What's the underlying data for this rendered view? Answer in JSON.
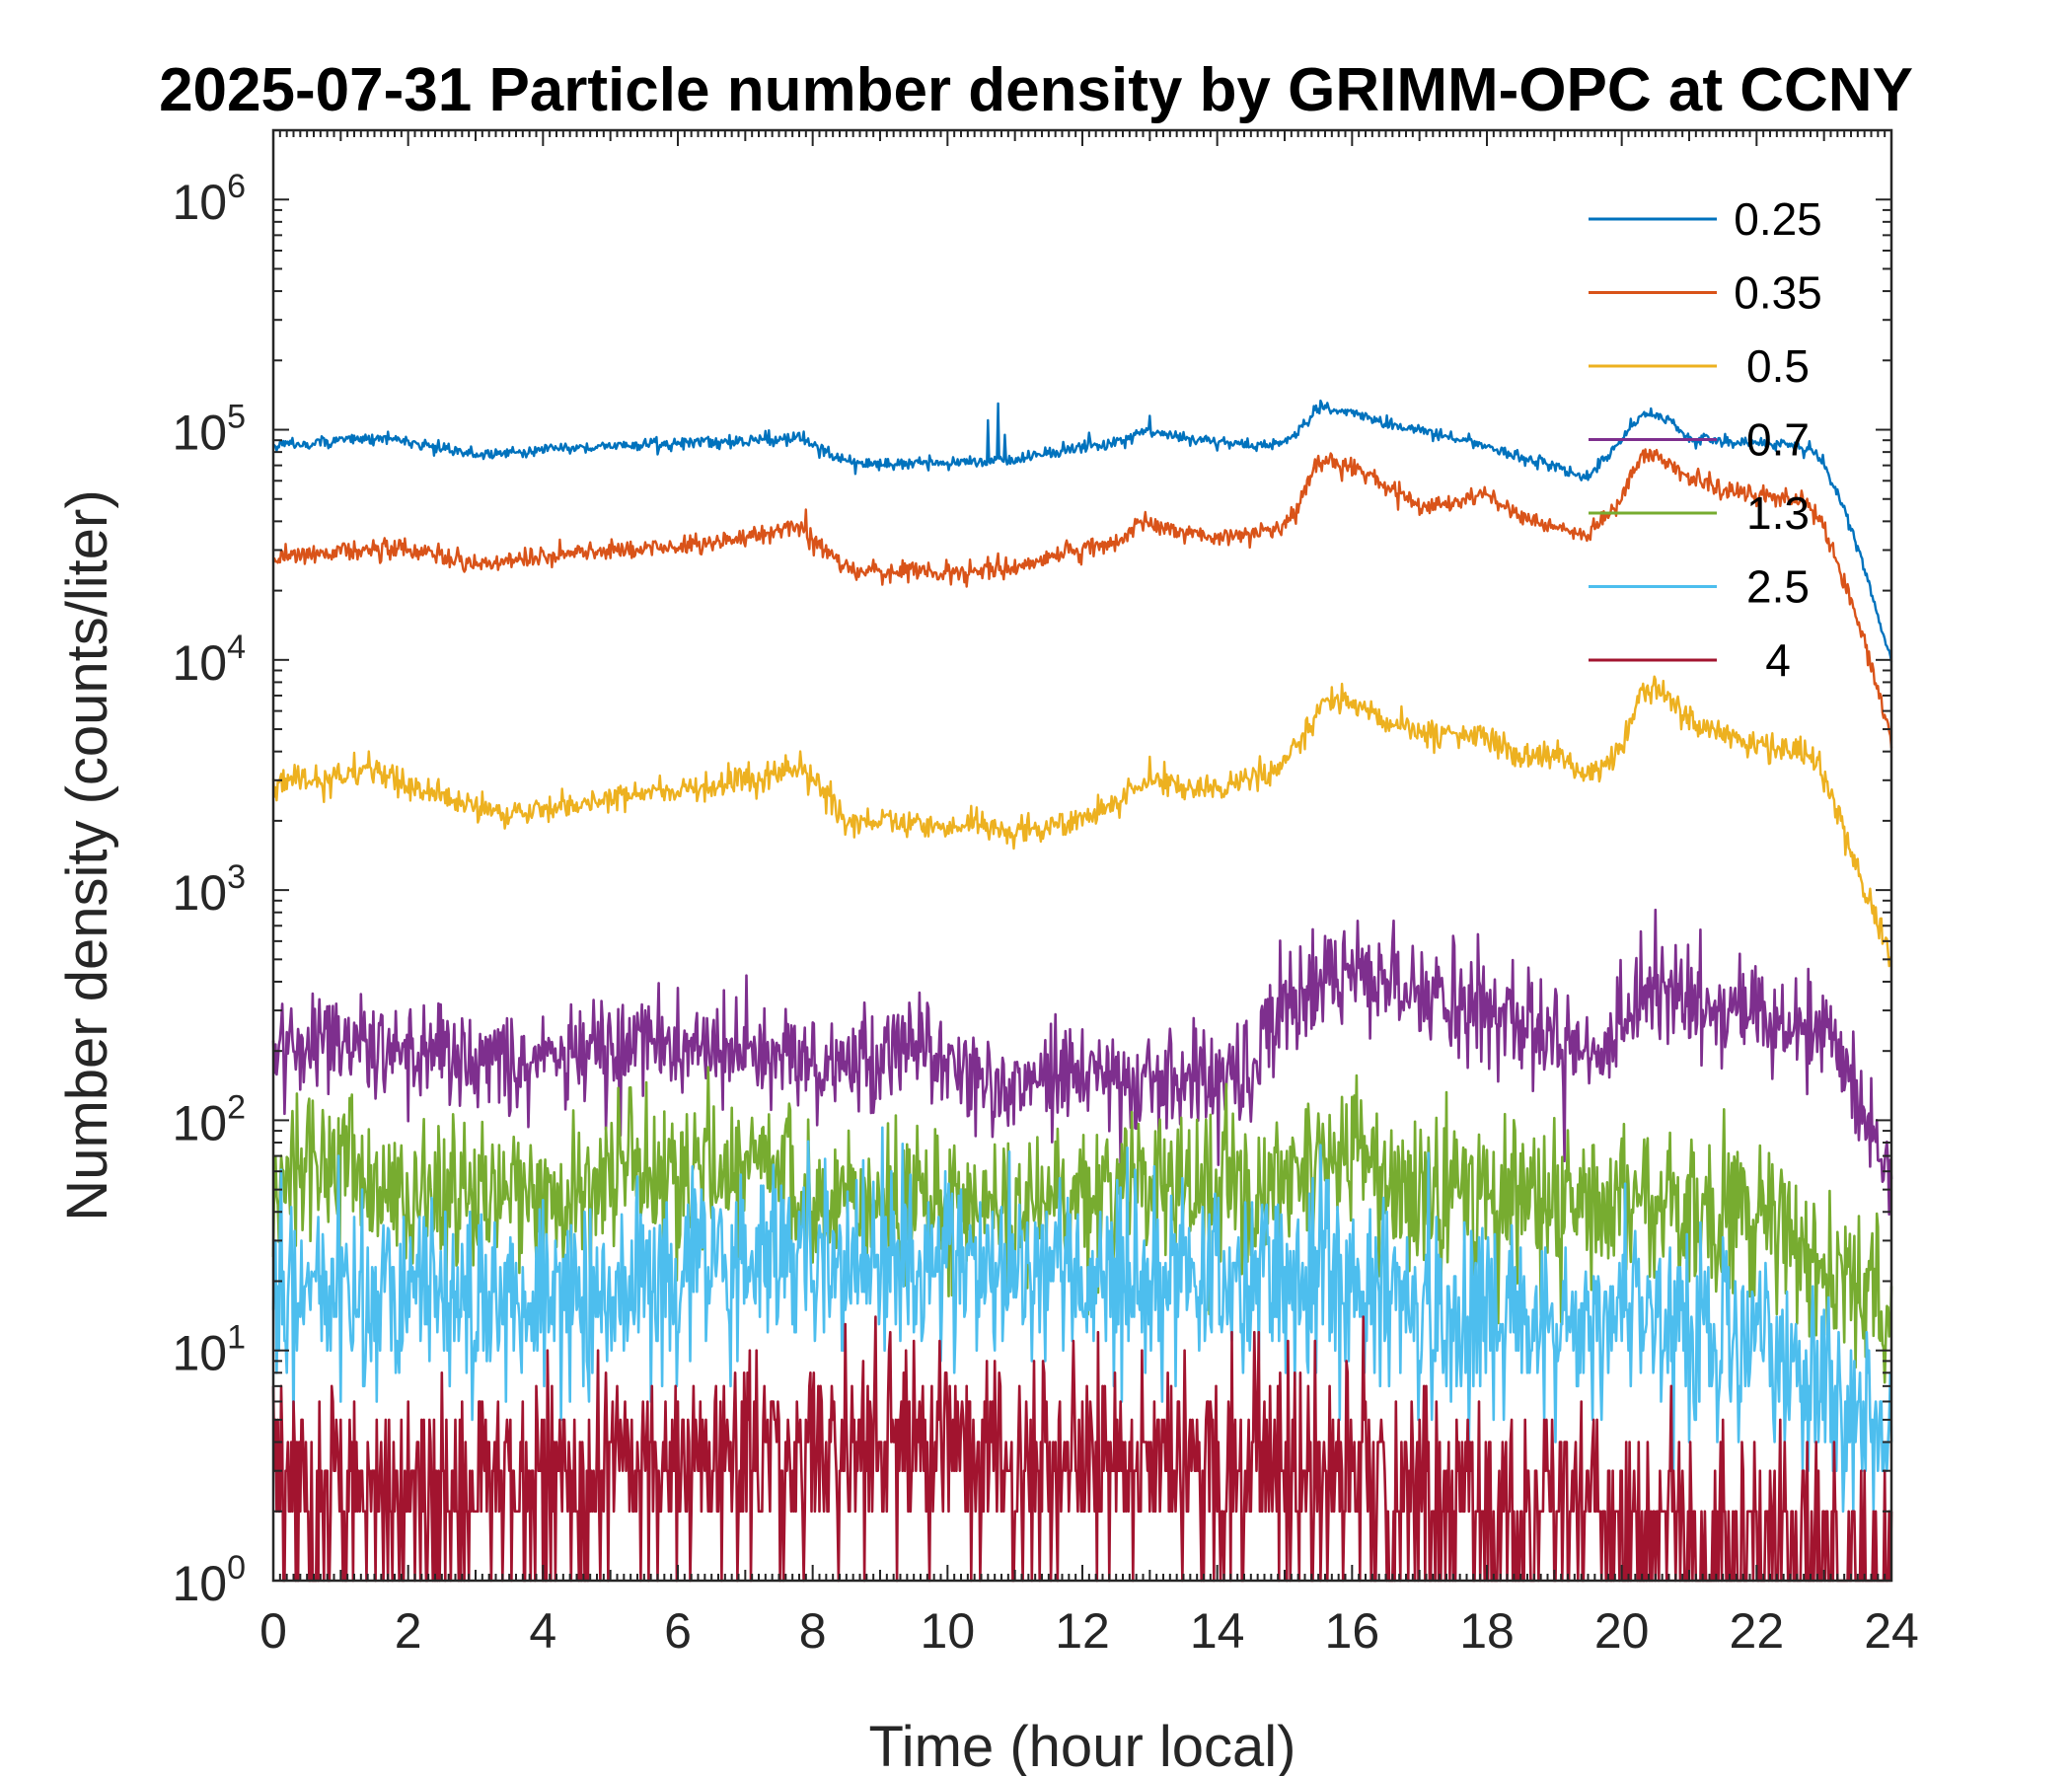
{
  "chart_data": {
    "type": "line",
    "title": "2025-07-31 Particle number density by GRIMM-OPC at CCNY",
    "xlabel": "Time (hour local)",
    "ylabel": "Number density (counts/liter)",
    "xlim": [
      0,
      24
    ],
    "ylim": [
      1,
      2000000
    ],
    "yscale": "log",
    "grid": false,
    "legend_position": "top-right",
    "x_ticks": [
      "0",
      "2",
      "4",
      "6",
      "8",
      "10",
      "12",
      "14",
      "16",
      "18",
      "20",
      "22",
      "24"
    ],
    "y_ticks": [
      {
        "base": "10",
        "exp": "0"
      },
      {
        "base": "10",
        "exp": "1"
      },
      {
        "base": "10",
        "exp": "2"
      },
      {
        "base": "10",
        "exp": "3"
      },
      {
        "base": "10",
        "exp": "4"
      },
      {
        "base": "10",
        "exp": "5"
      },
      {
        "base": "10",
        "exp": "6"
      }
    ],
    "series": [
      {
        "name": "0.25",
        "color": "#0072BD",
        "noise": 0.03,
        "x": [
          0,
          1,
          1.7,
          2,
          3,
          4,
          5,
          6,
          7,
          7.8,
          8.2,
          8.6,
          9,
          10,
          11,
          12,
          12.5,
          12.9,
          13.5,
          14,
          14.8,
          15.2,
          15.5,
          16,
          16.5,
          17,
          18,
          18.5,
          19,
          19.5,
          20,
          20.3,
          20.7,
          21,
          22,
          22.5,
          22.8,
          23,
          23.3,
          23.6,
          24
        ],
        "y": [
          85000,
          90000,
          92000,
          88000,
          78000,
          82000,
          85000,
          87000,
          90000,
          92000,
          80000,
          72000,
          70000,
          72000,
          74000,
          85000,
          88000,
          100000,
          92000,
          88000,
          85000,
          95000,
          125000,
          120000,
          105000,
          100000,
          85000,
          75000,
          70000,
          62000,
          90000,
          120000,
          110000,
          90000,
          88000,
          86000,
          83000,
          70000,
          45000,
          25000,
          10000
        ],
        "spikes": [
          [
            10.6,
            110000
          ],
          [
            10.75,
            130000
          ],
          [
            10.85,
            95000
          ],
          [
            1.7,
            98000
          ],
          [
            12.1,
            97000
          ],
          [
            13,
            115000
          ]
        ]
      },
      {
        "name": "0.35",
        "color": "#D95319",
        "noise": 0.05,
        "x": [
          0,
          1,
          2,
          3,
          4,
          5,
          6,
          7,
          7.8,
          8.2,
          8.5,
          9,
          10,
          11,
          11.5,
          12,
          12.5,
          12.9,
          13.5,
          14,
          14.8,
          15.2,
          15.5,
          16,
          16.5,
          17,
          18,
          18.5,
          19,
          19.5,
          20,
          20.3,
          20.7,
          21,
          21.5,
          22,
          22.5,
          22.8,
          23,
          23.3,
          23.6,
          24
        ],
        "y": [
          28000,
          30000,
          30000,
          26000,
          28000,
          30000,
          31000,
          34000,
          38000,
          30000,
          25000,
          24000,
          24000,
          25000,
          28000,
          30000,
          32000,
          40000,
          36000,
          34000,
          36000,
          45000,
          75000,
          70000,
          58000,
          45000,
          52000,
          42000,
          38000,
          35000,
          50000,
          80000,
          72000,
          60000,
          55000,
          52000,
          50000,
          47000,
          38000,
          22000,
          12000,
          4500
        ],
        "spikes": [
          [
            7.9,
            45000
          ],
          [
            10.6,
            28000
          ],
          [
            10.75,
            29000
          ]
        ]
      },
      {
        "name": "0.5",
        "color": "#EDB120",
        "noise": 0.07,
        "x": [
          0,
          1,
          1.5,
          2,
          3,
          3.5,
          4,
          5,
          6,
          7,
          7.8,
          8.2,
          8.5,
          9,
          10,
          11,
          11.5,
          12,
          12.5,
          13,
          13.5,
          14,
          14.8,
          15.2,
          15.6,
          16,
          16.5,
          17,
          18,
          18.5,
          19,
          19.5,
          20,
          20.3,
          20.7,
          21,
          22,
          22.5,
          22.8,
          23,
          23.3,
          23.6,
          24
        ],
        "y": [
          3000,
          3100,
          3300,
          2800,
          2300,
          2100,
          2300,
          2500,
          2700,
          3000,
          3400,
          2600,
          2000,
          2000,
          1900,
          1800,
          1900,
          2100,
          2400,
          3100,
          2800,
          2800,
          3200,
          4300,
          6800,
          6500,
          5500,
          4700,
          4600,
          3800,
          4000,
          3100,
          4000,
          7500,
          7000,
          5400,
          4300,
          4100,
          3800,
          3000,
          1800,
          1000,
          500
        ],
        "spikes": [
          [
            3,
            1900
          ],
          [
            13,
            3800
          ]
        ]
      },
      {
        "name": "0.7",
        "color": "#7E2F8E",
        "noise": 0.26,
        "x": [
          0,
          1,
          2,
          3,
          4,
          5,
          6,
          7,
          8,
          8.5,
          9,
          9.5,
          10,
          11,
          12,
          13,
          14,
          14.5,
          14.8,
          15.5,
          16,
          16.5,
          17,
          18,
          18.5,
          19,
          19.5,
          20,
          20.5,
          21,
          22,
          22.5,
          23,
          23.3,
          23.6,
          24
        ],
        "y": [
          220,
          230,
          200,
          170,
          190,
          190,
          210,
          200,
          190,
          150,
          190,
          230,
          180,
          140,
          160,
          150,
          150,
          160,
          280,
          400,
          450,
          420,
          340,
          290,
          260,
          260,
          190,
          260,
          390,
          330,
          280,
          270,
          230,
          160,
          100,
          60
        ]
      },
      {
        "name": "1.3",
        "color": "#77AC30",
        "noise": 0.4,
        "x": [
          0,
          1,
          2,
          3,
          4,
          5,
          6,
          7,
          8,
          9,
          10,
          11,
          12,
          13,
          14,
          14.6,
          15.5,
          16,
          16.5,
          17,
          18,
          19,
          20,
          21,
          22,
          23,
          24
        ],
        "y": [
          60,
          60,
          50,
          45,
          45,
          55,
          60,
          70,
          50,
          45,
          45,
          42,
          45,
          45,
          42,
          45,
          70,
          80,
          60,
          50,
          50,
          40,
          45,
          40,
          35,
          25,
          15
        ]
      },
      {
        "name": "2.5",
        "color": "#4DBEEE",
        "noise": 0.5,
        "x": [
          0,
          1,
          2,
          3,
          4,
          5,
          6,
          7,
          8,
          9,
          10,
          11,
          12,
          13,
          14,
          15,
          16,
          17,
          18,
          19,
          20,
          21,
          22,
          23,
          24
        ],
        "y": [
          18,
          20,
          18,
          15,
          17,
          20,
          22,
          24,
          25,
          22,
          25,
          22,
          24,
          22,
          20,
          25,
          20,
          15,
          14,
          13,
          15,
          12,
          10,
          7,
          4
        ]
      },
      {
        "name": "4",
        "color": "#A2142F",
        "noise": 0.55,
        "x": [
          0,
          2,
          4,
          6,
          8,
          9,
          10,
          11,
          12,
          14,
          15,
          16,
          17,
          18,
          19,
          20,
          21,
          22,
          23,
          24
        ],
        "y": [
          2.5,
          2.5,
          2.6,
          3.2,
          3.5,
          4,
          4.2,
          3.5,
          3,
          2.8,
          2.8,
          3,
          2.2,
          2,
          1.8,
          1.8,
          1.5,
          1.5,
          1.3,
          1.2
        ]
      }
    ]
  }
}
